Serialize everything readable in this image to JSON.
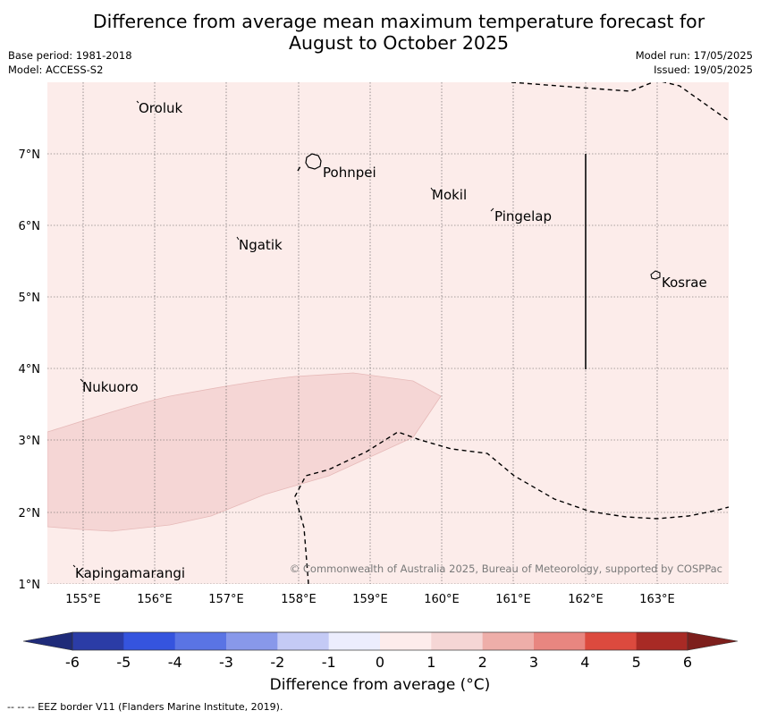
{
  "title": "Difference from average mean maximum temperature forecast for August to October 2025",
  "title_lines": [
    "Difference from average mean maximum temperature forecast for",
    "August to October 2025"
  ],
  "base_period": "Base period: 1981-2018",
  "model": "Model: ACCESS-S2",
  "model_run": "Model run: 17/05/2025",
  "issued": "Issued: 19/05/2025",
  "copyright": "© Commonwealth of Australia 2025, Bureau of Meteorology, supported by COSPPac",
  "footer": "--  --  -- EEZ border V11 (Flanders Marine Institute, 2019).",
  "map": {
    "lat_labels": [
      "7°N",
      "6°N",
      "5°N",
      "4°N",
      "3°N",
      "2°N",
      "1°N"
    ],
    "lon_labels": [
      "155°E",
      "156°E",
      "157°E",
      "158°E",
      "159°E",
      "160°E",
      "161°E",
      "162°E",
      "163°E"
    ],
    "places": [
      {
        "name": "Oroluk",
        "lon": 155.8,
        "lat": 7.6
      },
      {
        "name": "Pohnpei",
        "lon": 158.3,
        "lat": 6.85
      },
      {
        "name": "Mokil",
        "lon": 159.8,
        "lat": 6.45
      },
      {
        "name": "Pingelap",
        "lon": 160.7,
        "lat": 6.15
      },
      {
        "name": "Ngatik",
        "lon": 157.1,
        "lat": 5.75
      },
      {
        "name": "Kosrae",
        "lon": 163.0,
        "lat": 5.3
      },
      {
        "name": "Nukuoro",
        "lon": 155.0,
        "lat": 3.8
      },
      {
        "name": "Kapingamarangi",
        "lon": 154.9,
        "lat": 1.2
      }
    ],
    "background_category": "0 to 1",
    "background_color": "#fcecea",
    "region_category": "1 to 2",
    "region_color": "#f5d6d5"
  },
  "colorbar": {
    "label": "Difference from average (°C)",
    "ticks": [
      "-6",
      "-5",
      "-4",
      "-3",
      "-2",
      "-1",
      "0",
      "1",
      "2",
      "3",
      "4",
      "5",
      "6"
    ],
    "colors": [
      "#2b3ca6",
      "#3554de",
      "#5a74e4",
      "#8898ea",
      "#c4caf5",
      "#ecedfd",
      "#fdeceb",
      "#f5d6d5",
      "#eeaea9",
      "#e88680",
      "#dc4a3e",
      "#a82a25"
    ],
    "under_color": "#1f2b79",
    "over_color": "#7d1f1c"
  }
}
